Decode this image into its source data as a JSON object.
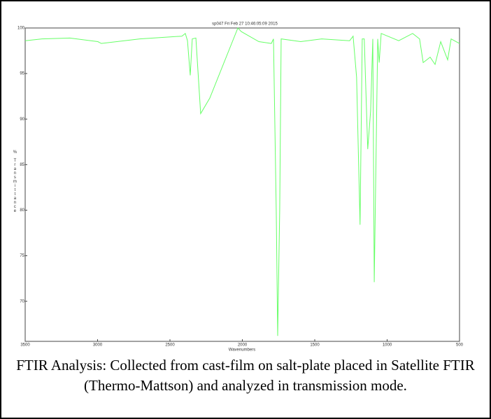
{
  "chart_data": {
    "type": "line",
    "title": "sp047   Fri Feb 27 10:46:05:09 2015",
    "x_label": "Wavenumbers",
    "y_label": "% Transmittance",
    "x": [
      3500,
      3384,
      3191,
      2998,
      2974,
      2708,
      2418,
      2394,
      2379,
      2360,
      2346,
      2321,
      2288,
      2225,
      2031,
      2007,
      1886,
      1800,
      1785,
      1766,
      1756,
      1742,
      1732,
      1597,
      1452,
      1259,
      1235,
      1211,
      1187,
      1172,
      1158,
      1134,
      1114,
      1099,
      1089,
      1065,
      1055,
      1041,
      920,
      824,
      776,
      751,
      703,
      669,
      630,
      582,
      558,
      500
    ],
    "series": [
      {
        "name": "% Transmittance",
        "color": "#66ff66",
        "values": [
          98.6,
          98.8,
          98.9,
          98.5,
          98.3,
          98.8,
          99.1,
          99.4,
          98.6,
          94.8,
          98.8,
          98.9,
          90.6,
          92.3,
          100,
          99.6,
          98.5,
          98.3,
          98.8,
          80,
          66.2,
          80,
          98.8,
          98.5,
          98.8,
          98.6,
          99.1,
          94.6,
          78.4,
          98.8,
          98.8,
          86.7,
          90.9,
          98.8,
          72.1,
          98.8,
          96.2,
          99.4,
          98.6,
          99.4,
          98.8,
          96.2,
          96.8,
          96,
          98.5,
          96.5,
          98.8,
          98.3
        ]
      }
    ],
    "xlim": [
      3500,
      500
    ],
    "xticks": [
      3500,
      3000,
      2500,
      2000,
      1500,
      1000,
      500
    ],
    "ylim": [
      65.6,
      100
    ],
    "yticks": [
      70,
      75,
      80,
      85,
      90,
      95,
      100
    ],
    "grid": false
  },
  "caption": "FTIR Analysis: Collected from cast-film on salt-plate placed in Satellite FTIR (Thermo-Mattson) and analyzed in transmission mode."
}
